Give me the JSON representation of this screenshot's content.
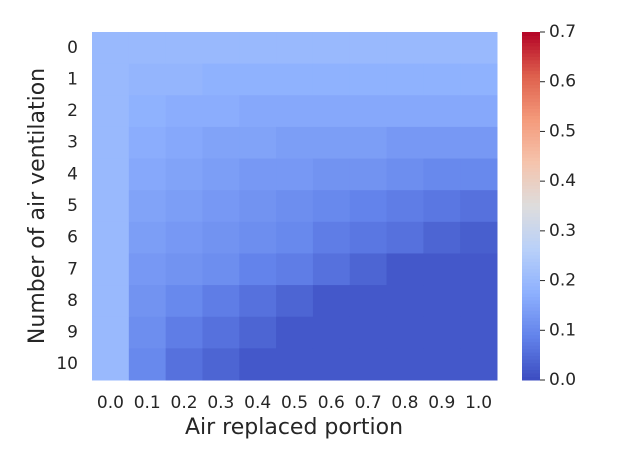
{
  "chart_data": {
    "type": "heatmap",
    "xlabel": "Air replaced portion",
    "ylabel": "Number of air ventilation",
    "x_categories": [
      "0.0",
      "0.1",
      "0.2",
      "0.3",
      "0.4",
      "0.5",
      "0.6",
      "0.7",
      "0.8",
      "0.9",
      "1.0"
    ],
    "y_categories": [
      "0",
      "1",
      "2",
      "3",
      "4",
      "5",
      "6",
      "7",
      "8",
      "9",
      "10"
    ],
    "z": [
      [
        0.2,
        0.2,
        0.2,
        0.2,
        0.2,
        0.2,
        0.2,
        0.2,
        0.2,
        0.2,
        0.2
      ],
      [
        0.2,
        0.19,
        0.19,
        0.18,
        0.18,
        0.18,
        0.18,
        0.18,
        0.18,
        0.18,
        0.18
      ],
      [
        0.2,
        0.18,
        0.17,
        0.17,
        0.16,
        0.16,
        0.16,
        0.16,
        0.16,
        0.16,
        0.16
      ],
      [
        0.2,
        0.17,
        0.16,
        0.15,
        0.15,
        0.14,
        0.14,
        0.14,
        0.13,
        0.13,
        0.13
      ],
      [
        0.2,
        0.16,
        0.15,
        0.14,
        0.13,
        0.13,
        0.12,
        0.12,
        0.11,
        0.1,
        0.1
      ],
      [
        0.2,
        0.15,
        0.14,
        0.13,
        0.12,
        0.11,
        0.1,
        0.09,
        0.08,
        0.07,
        0.06
      ],
      [
        0.2,
        0.14,
        0.13,
        0.12,
        0.11,
        0.1,
        0.08,
        0.07,
        0.06,
        0.04,
        0.03
      ],
      [
        0.2,
        0.13,
        0.12,
        0.11,
        0.09,
        0.08,
        0.06,
        0.04,
        0.02,
        0.02,
        0.02
      ],
      [
        0.2,
        0.12,
        0.1,
        0.08,
        0.06,
        0.04,
        0.02,
        0.02,
        0.02,
        0.02,
        0.02
      ],
      [
        0.2,
        0.11,
        0.08,
        0.06,
        0.04,
        0.02,
        0.02,
        0.02,
        0.02,
        0.02,
        0.02
      ],
      [
        0.2,
        0.1,
        0.06,
        0.04,
        0.02,
        0.02,
        0.02,
        0.02,
        0.02,
        0.02,
        0.02
      ]
    ],
    "colormap": "coolwarm",
    "clim": [
      0,
      0.7
    ],
    "cticks": [
      {
        "value": 0,
        "label": "0.0"
      },
      0.1,
      0.2,
      0.3,
      0.4,
      0.5,
      0.6,
      0.7
    ]
  }
}
